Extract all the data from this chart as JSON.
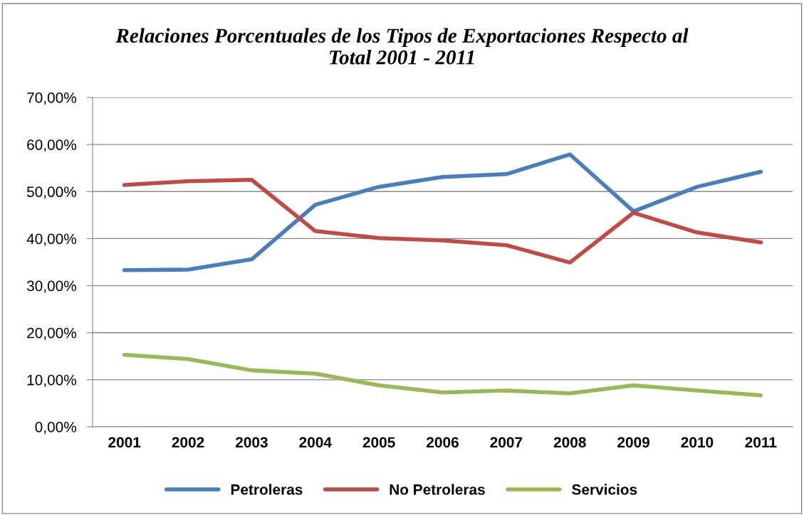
{
  "chart_data": {
    "type": "line",
    "title": "Relaciones Porcentuales de los Tipos de Exportaciones Respecto al\nTotal 2001 - 2011",
    "categories": [
      "2001",
      "2002",
      "2003",
      "2004",
      "2005",
      "2006",
      "2007",
      "2008",
      "2009",
      "2010",
      "2011"
    ],
    "series": [
      {
        "name": "Petroleras",
        "color": "#4a7ebb",
        "values": [
          33.3,
          33.4,
          35.6,
          47.2,
          51.0,
          53.1,
          53.7,
          57.9,
          45.8,
          51.0,
          54.2
        ]
      },
      {
        "name": "No Petroleras",
        "color": "#be4b48",
        "values": [
          51.4,
          52.2,
          52.5,
          41.6,
          40.1,
          39.6,
          38.6,
          34.9,
          45.5,
          41.3,
          39.2
        ]
      },
      {
        "name": "Servicios",
        "color": "#98b954",
        "values": [
          15.3,
          14.4,
          12.0,
          11.3,
          8.8,
          7.3,
          7.7,
          7.1,
          8.8,
          7.7,
          6.7
        ]
      }
    ],
    "ylim": [
      0,
      70
    ],
    "yticks": [
      {
        "value": 0,
        "label": "0,00%"
      },
      {
        "value": 10,
        "label": "10,00%"
      },
      {
        "value": 20,
        "label": "20,00%"
      },
      {
        "value": 30,
        "label": "30,00%"
      },
      {
        "value": 40,
        "label": "40,00%"
      },
      {
        "value": 50,
        "label": "50,00%"
      },
      {
        "value": 60,
        "label": "60,00%"
      },
      {
        "value": 70,
        "label": "70,00%"
      }
    ],
    "grid": "y",
    "legend": "bottom",
    "marker": "none",
    "line_style": "solid"
  }
}
